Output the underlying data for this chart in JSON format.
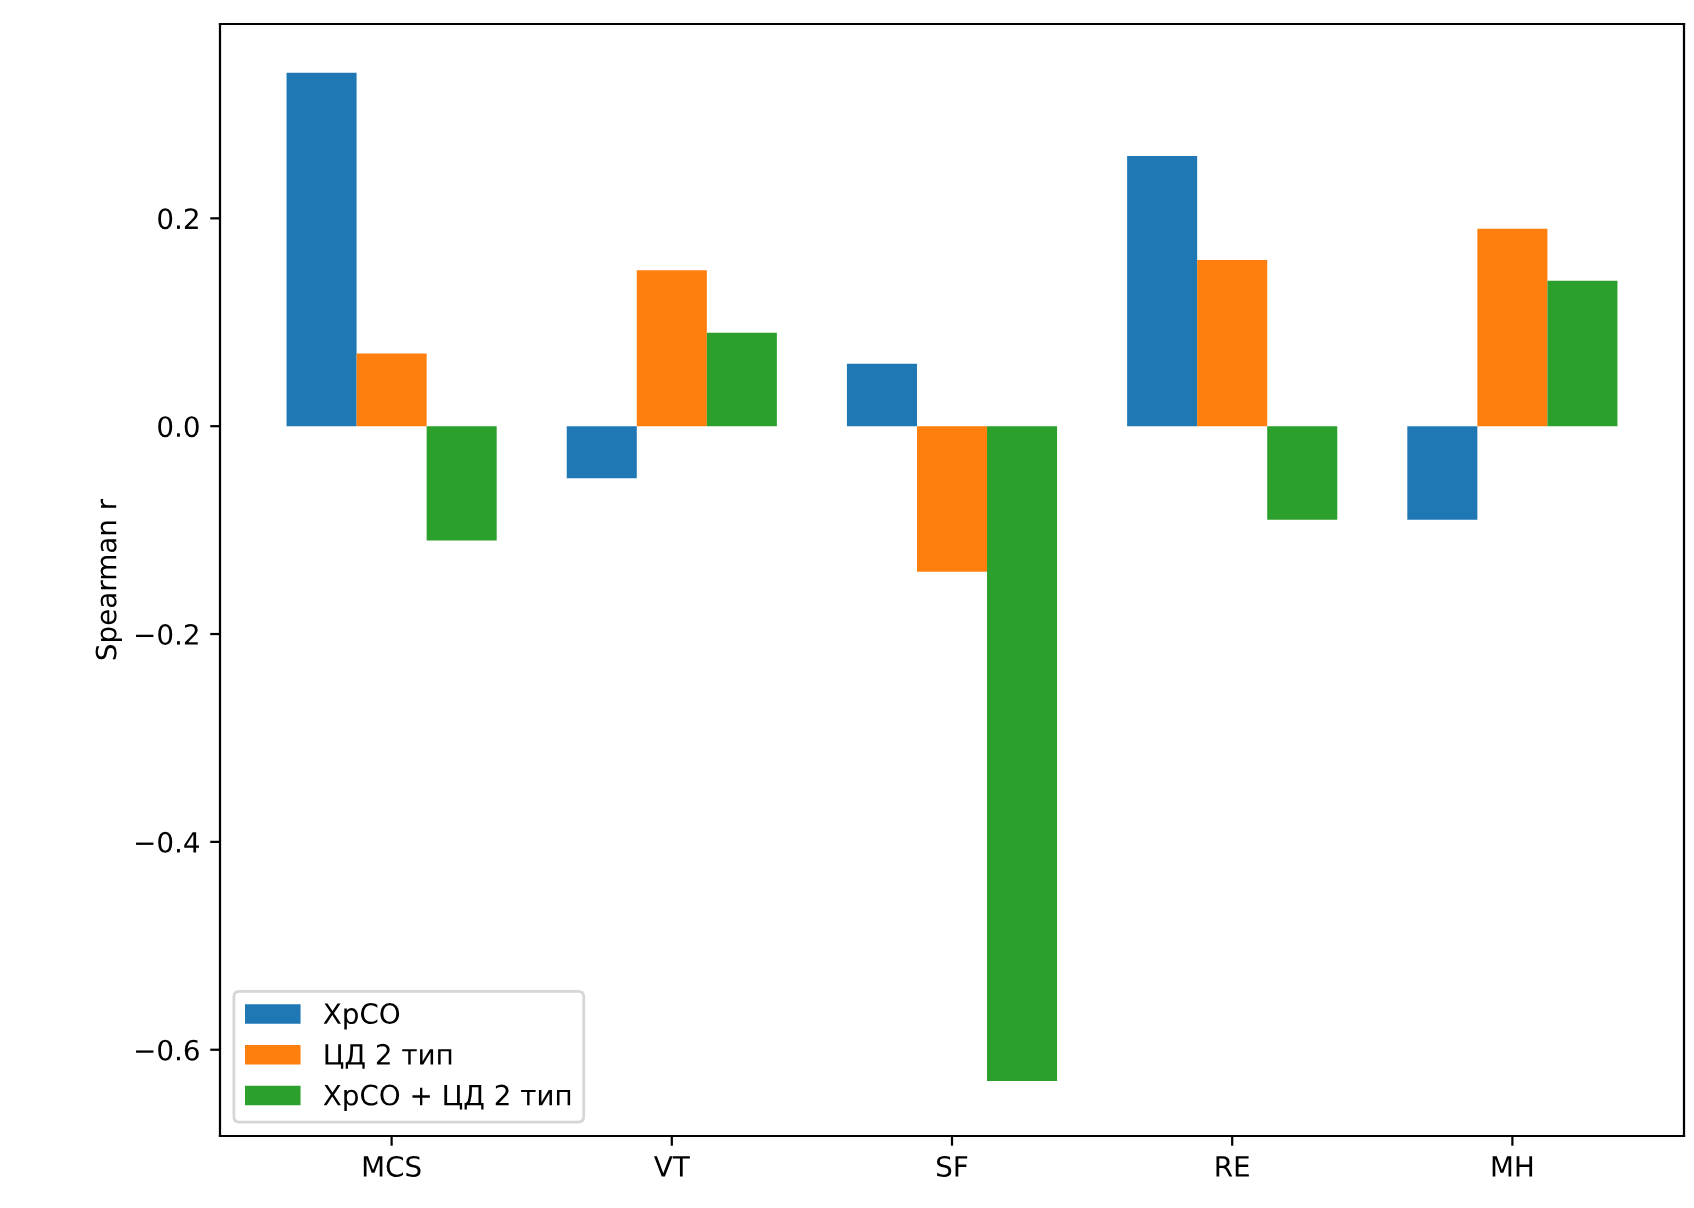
{
  "chart_data": {
    "type": "bar",
    "ylabel": "Spearman r",
    "categories": [
      "MCS",
      "VT",
      "SF",
      "RE",
      "MH"
    ],
    "series": [
      {
        "name": "ХрСО",
        "color": "#1f77b4",
        "values": [
          0.34,
          -0.05,
          0.06,
          0.26,
          -0.09
        ]
      },
      {
        "name": "ЦД 2 тип",
        "color": "#ff7f0e",
        "values": [
          0.07,
          0.15,
          -0.14,
          0.16,
          0.19
        ]
      },
      {
        "name": "ХрСО + ЦД 2 тип",
        "color": "#2ca02c",
        "values": [
          -0.11,
          0.09,
          -0.63,
          -0.09,
          0.14
        ]
      }
    ],
    "ylim": [
      -0.683,
      0.387
    ],
    "yticks": [
      {
        "value": -0.6,
        "label": "−0.6"
      },
      {
        "value": -0.4,
        "label": "−0.4"
      },
      {
        "value": -0.2,
        "label": "−0.2"
      },
      {
        "value": 0.0,
        "label": "0.0"
      },
      {
        "value": 0.2,
        "label": "0.2"
      }
    ],
    "legend": "bottom left",
    "grid": false
  }
}
